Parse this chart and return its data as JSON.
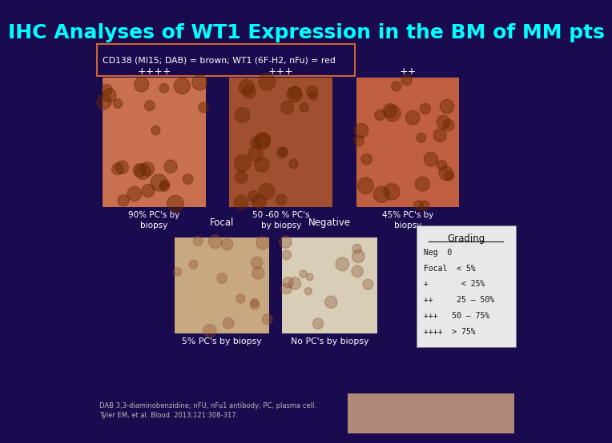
{
  "title": "IHC Analyses of WT1 Expression in the BM of MM pts",
  "title_color": "#00FFFF",
  "title_fontsize": 18,
  "bg_color": "#1a0a4e",
  "subtitle_box_text": "CD138 (MI15; DAB) = brown; WT1 (6F-H2, nFu) = red",
  "subtitle_box_color": "#1a0a4e",
  "subtitle_box_border": "#cc6633",
  "subtitle_text_color": "#ffffff",
  "row1_grades": [
    "++++",
    "+++",
    "++"
  ],
  "row1_labels": [
    "90% PC's by\nbiopsy",
    "50 -60 % PC's\nby biopsy",
    "45% PC's by\nbiopsy"
  ],
  "row2_labels": [
    "Focal",
    "5% PC's by biopsy",
    "Negative",
    "No PC's by biopsy"
  ],
  "grading_title": "Grading",
  "grading_lines": [
    "Neg  0",
    "Focal  < 5%",
    "+       < 25%",
    "++     25 – 50%",
    "+++   50 – 75%",
    "++++  > 75%"
  ],
  "footnote": "DAB 3,3-diaminobenzidine; nFU, nFu1 antibody; PC, plasma cell.\nTyler EM, et al. Blood. 2013;121:308-317.",
  "white": "#ffffff",
  "light_gray": "#dddddd",
  "grade_color": "#ffffff",
  "label_color": "#ffffff",
  "grading_bg": "#e8e8e8",
  "grading_border": "#888888"
}
